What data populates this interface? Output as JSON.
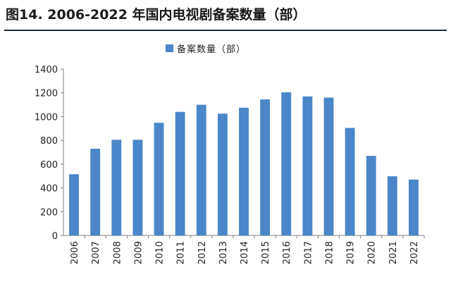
{
  "figure": {
    "title": "图14. 2006-2022 年国内电视剧备案数量（部）"
  },
  "chart_data": {
    "type": "bar",
    "categories": [
      "2006",
      "2007",
      "2008",
      "2009",
      "2010",
      "2011",
      "2012",
      "2013",
      "2014",
      "2015",
      "2016",
      "2017",
      "2018",
      "2019",
      "2020",
      "2021",
      "2022"
    ],
    "series": [
      {
        "name": "备案数量（部）",
        "values": [
          515,
          730,
          805,
          805,
          948,
          1040,
          1100,
          1025,
          1075,
          1145,
          1205,
          1170,
          1160,
          905,
          670,
          498,
          470
        ]
      }
    ],
    "ylim": [
      0,
      1400
    ],
    "yticks": [
      0,
      200,
      400,
      600,
      800,
      1000,
      1200,
      1400
    ],
    "grid": false,
    "legend_placement": "top-center",
    "colors": {
      "bar": "#4a86c8",
      "axis": "#7f7f7f"
    }
  }
}
